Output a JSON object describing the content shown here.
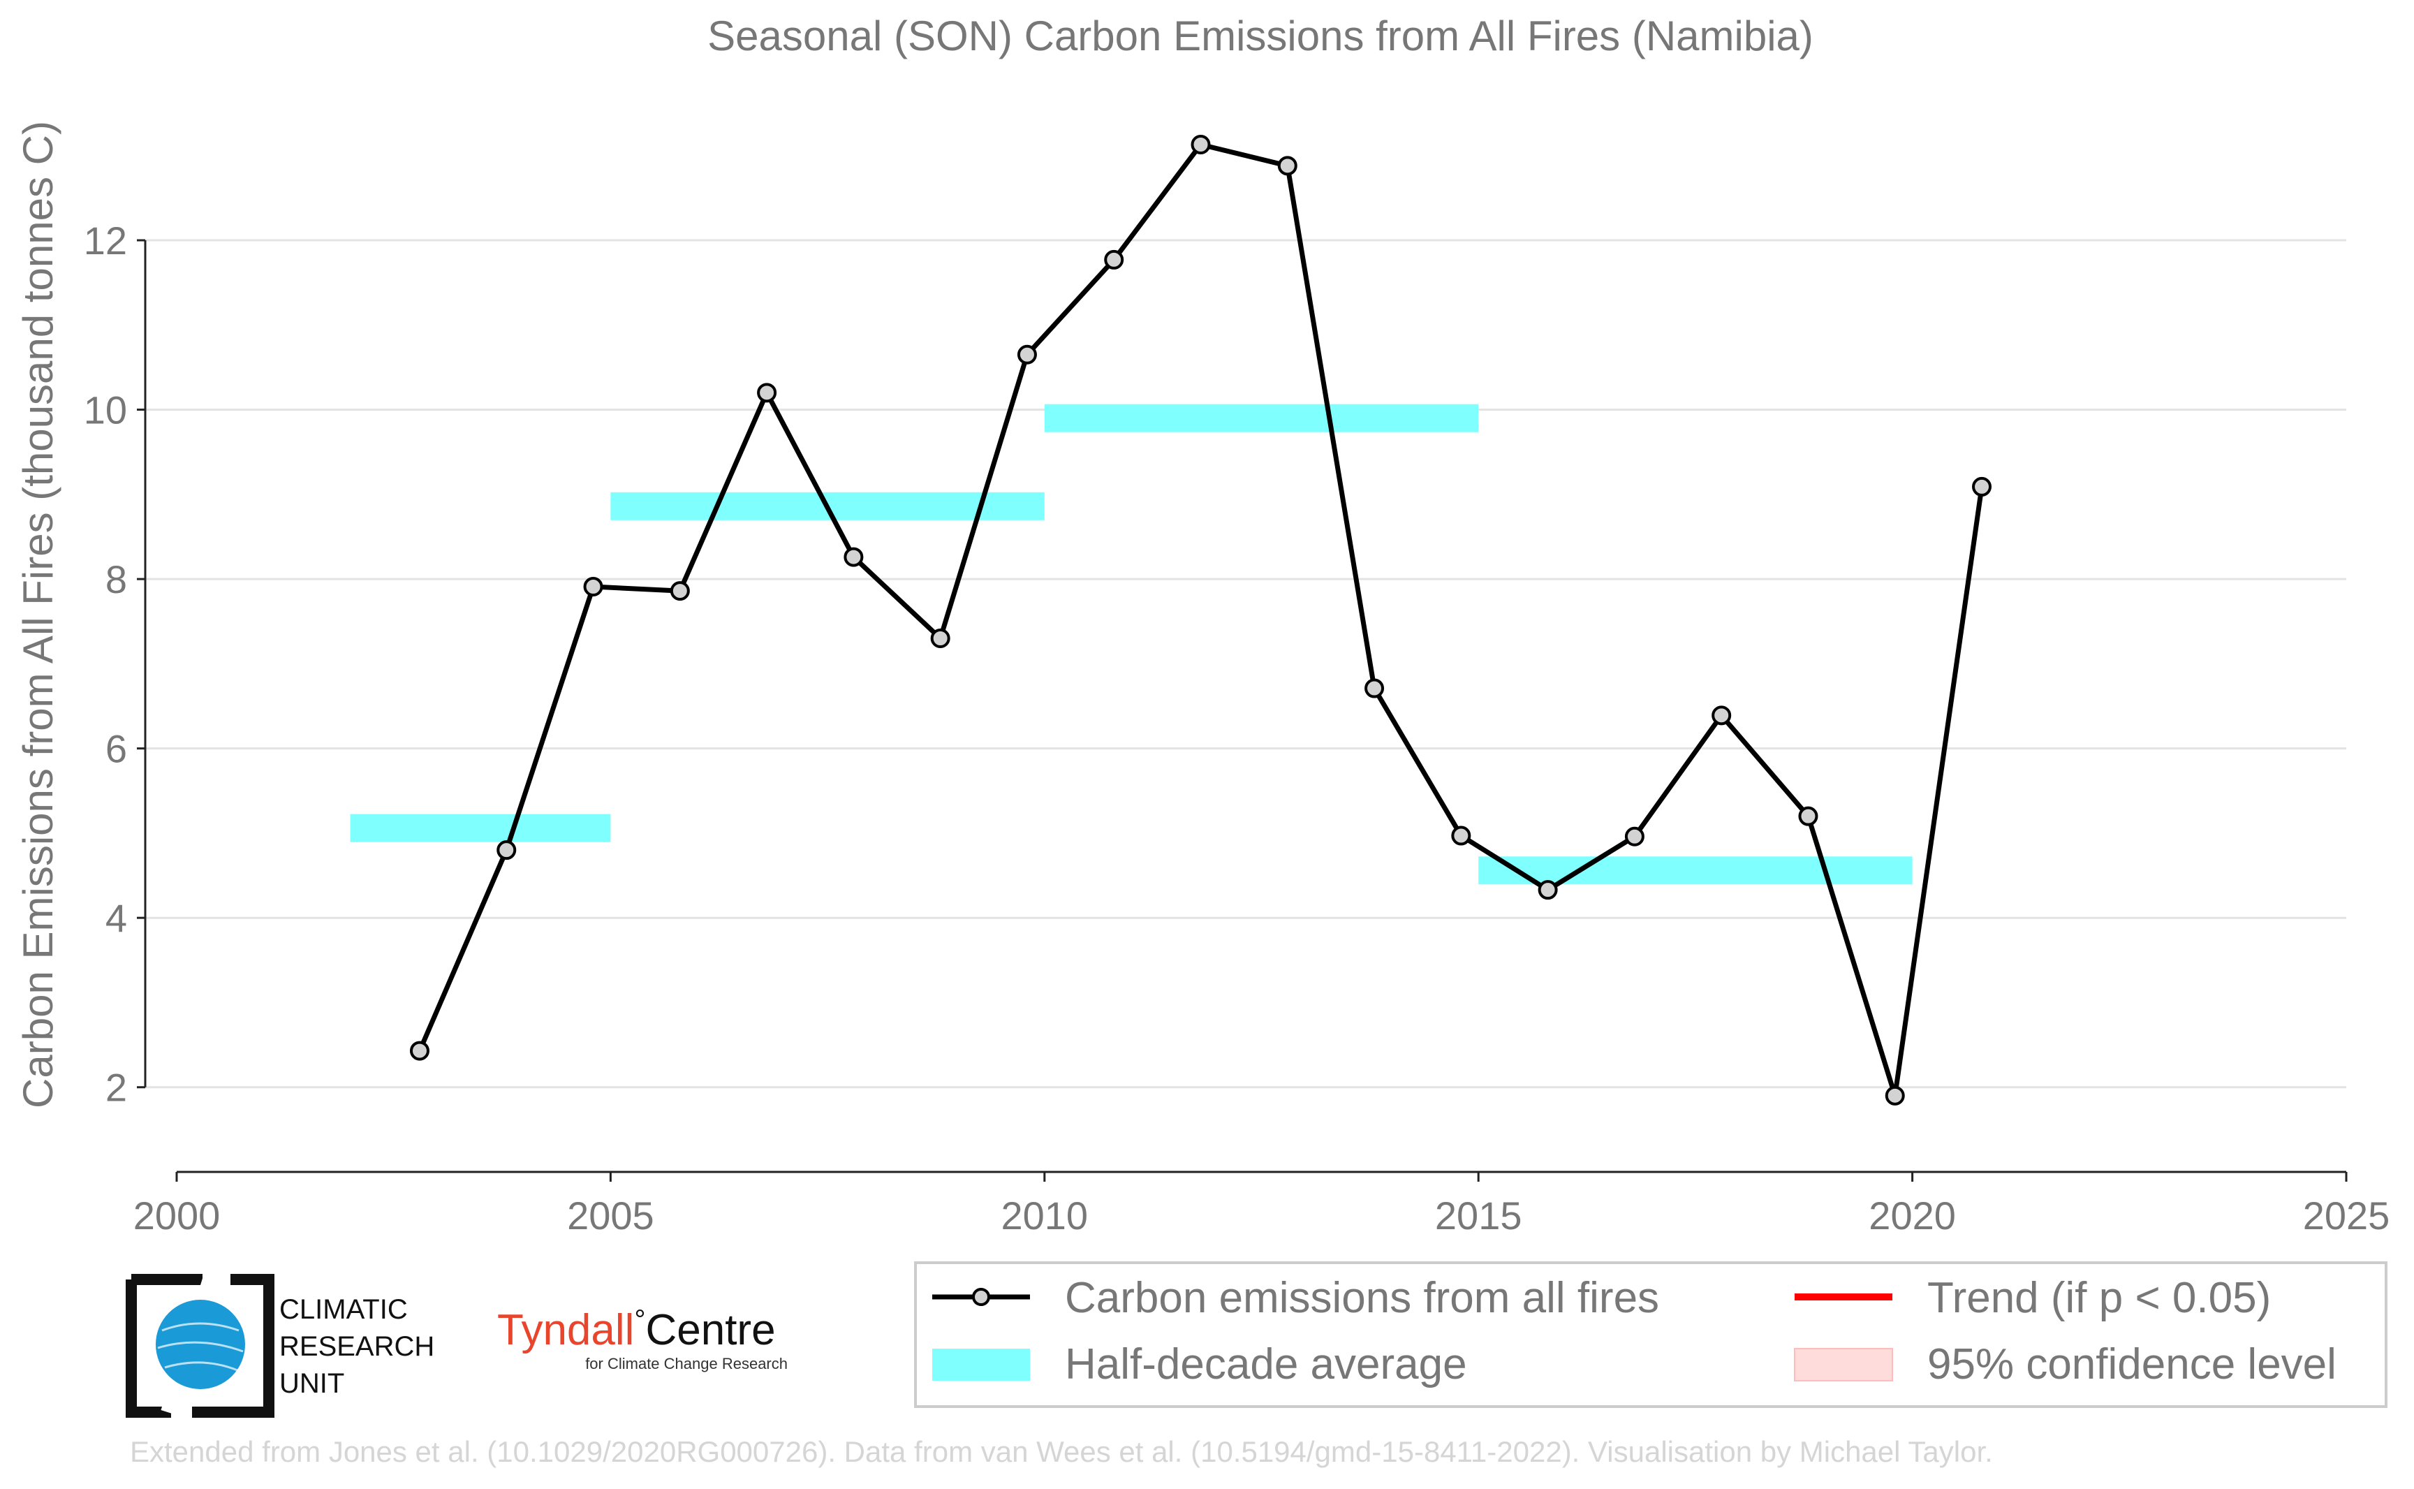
{
  "chart_data": {
    "type": "line",
    "title": "Seasonal (SON) Carbon Emissions from All Fires (Namibia)",
    "xlabel": "",
    "ylabel": "Carbon Emissions from All Fires (thousand tonnes C)",
    "xlim": [
      2000,
      2025
    ],
    "ylim": [
      1,
      13.6
    ],
    "x_ticks": [
      2000,
      2005,
      2010,
      2015,
      2020,
      2025
    ],
    "y_ticks": [
      2,
      4,
      6,
      8,
      10,
      12
    ],
    "grid": "horizontal",
    "legend_position": "bottom-right",
    "series": [
      {
        "name": "Carbon emissions from all fires",
        "color": "#000000",
        "marker_color": "#d3d3d3",
        "x": [
          2002.8,
          2003.8,
          2004.8,
          2005.8,
          2006.8,
          2007.8,
          2008.8,
          2009.8,
          2010.8,
          2011.8,
          2012.8,
          2013.8,
          2014.8,
          2015.8,
          2016.8,
          2017.8,
          2018.8,
          2019.8,
          2020.8
        ],
        "y": [
          2.43,
          4.8,
          7.91,
          7.86,
          10.2,
          8.26,
          7.3,
          10.65,
          11.77,
          13.13,
          12.88,
          6.71,
          4.97,
          4.33,
          4.96,
          6.39,
          5.2,
          1.9,
          9.09
        ]
      }
    ],
    "half_decade_averages": {
      "name": "Half-decade average",
      "color": "#80ffff",
      "periods": [
        {
          "start": 2002,
          "end": 2005,
          "value": 5.06
        },
        {
          "start": 2005,
          "end": 2010,
          "value": 8.86
        },
        {
          "start": 2010,
          "end": 2015,
          "value": 9.9
        },
        {
          "start": 2015,
          "end": 2020,
          "value": 4.56
        }
      ]
    },
    "legend": [
      {
        "label": "Carbon emissions from all fires",
        "kind": "line-marker",
        "color": "#000000"
      },
      {
        "label": "Trend (if p < 0.05)",
        "kind": "line",
        "color": "#ff0000"
      },
      {
        "label": "Half-decade average",
        "kind": "band",
        "color": "#80ffff"
      },
      {
        "label": "95% confidence level",
        "kind": "band",
        "color": "#ffdcdc"
      }
    ]
  },
  "logos": {
    "cru_line1": "CLIMATIC",
    "cru_line2": "RESEARCH",
    "cru_line3": "UNIT",
    "tyndall_main": "Tyndall",
    "tyndall_degree": "°",
    "tyndall_centre": "Centre",
    "tyndall_sub": "for Climate Change Research"
  },
  "footer": "Extended from Jones et al. (10.1029/2020RG000726). Data from van Wees et al. (10.5194/gmd-15-8411-2022). Visualisation by Michael Taylor."
}
